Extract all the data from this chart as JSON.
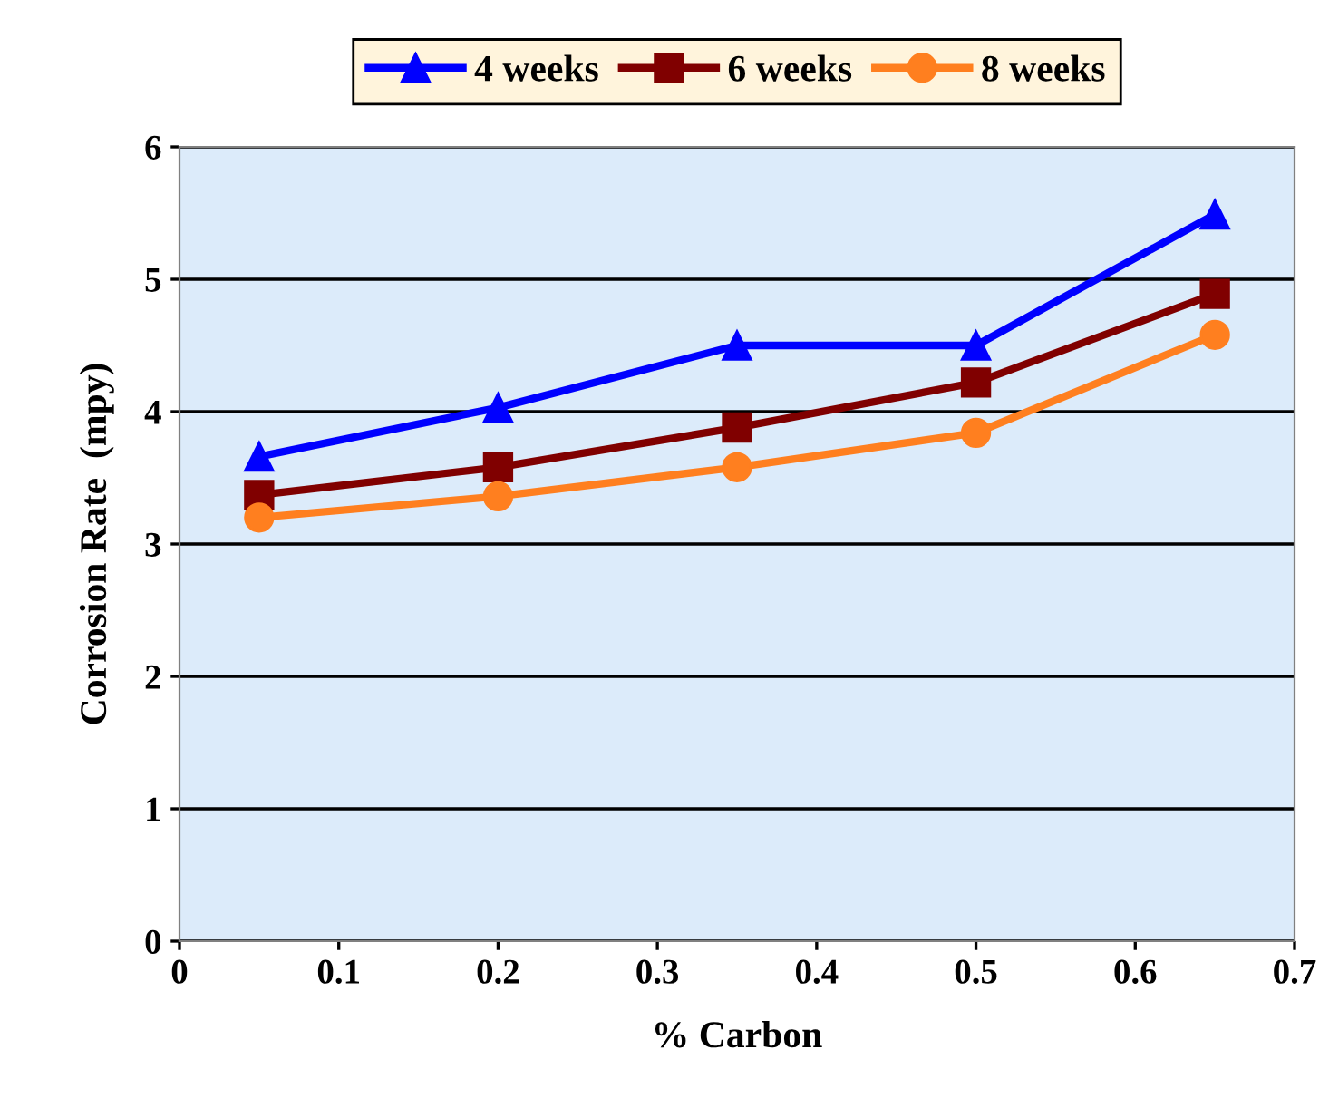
{
  "chart_data": {
    "type": "line",
    "xlabel": "% Carbon",
    "ylabel": "Corrosion Rate  (mpy)",
    "x": [
      0.05,
      0.2,
      0.35,
      0.5,
      0.65
    ],
    "series": [
      {
        "name": "4 weeks",
        "color": "#0000ff",
        "marker": "triangle",
        "values": [
          3.66,
          4.03,
          4.5,
          4.5,
          5.49
        ]
      },
      {
        "name": "6 weeks",
        "color": "#800000",
        "marker": "square",
        "values": [
          3.37,
          3.58,
          3.88,
          4.22,
          4.89
        ]
      },
      {
        "name": "8 weeks",
        "color": "#ff7f1f",
        "marker": "circle",
        "values": [
          3.2,
          3.36,
          3.58,
          3.84,
          4.58
        ]
      }
    ],
    "xlim": [
      0,
      0.7
    ],
    "xticks": [
      0,
      0.1,
      0.2,
      0.3,
      0.4,
      0.5,
      0.6,
      0.7
    ],
    "ylim": [
      0,
      6
    ],
    "yticks": [
      0,
      1,
      2,
      3,
      4,
      5,
      6
    ],
    "grid": "y",
    "legend": "top",
    "line_style": "solid"
  }
}
